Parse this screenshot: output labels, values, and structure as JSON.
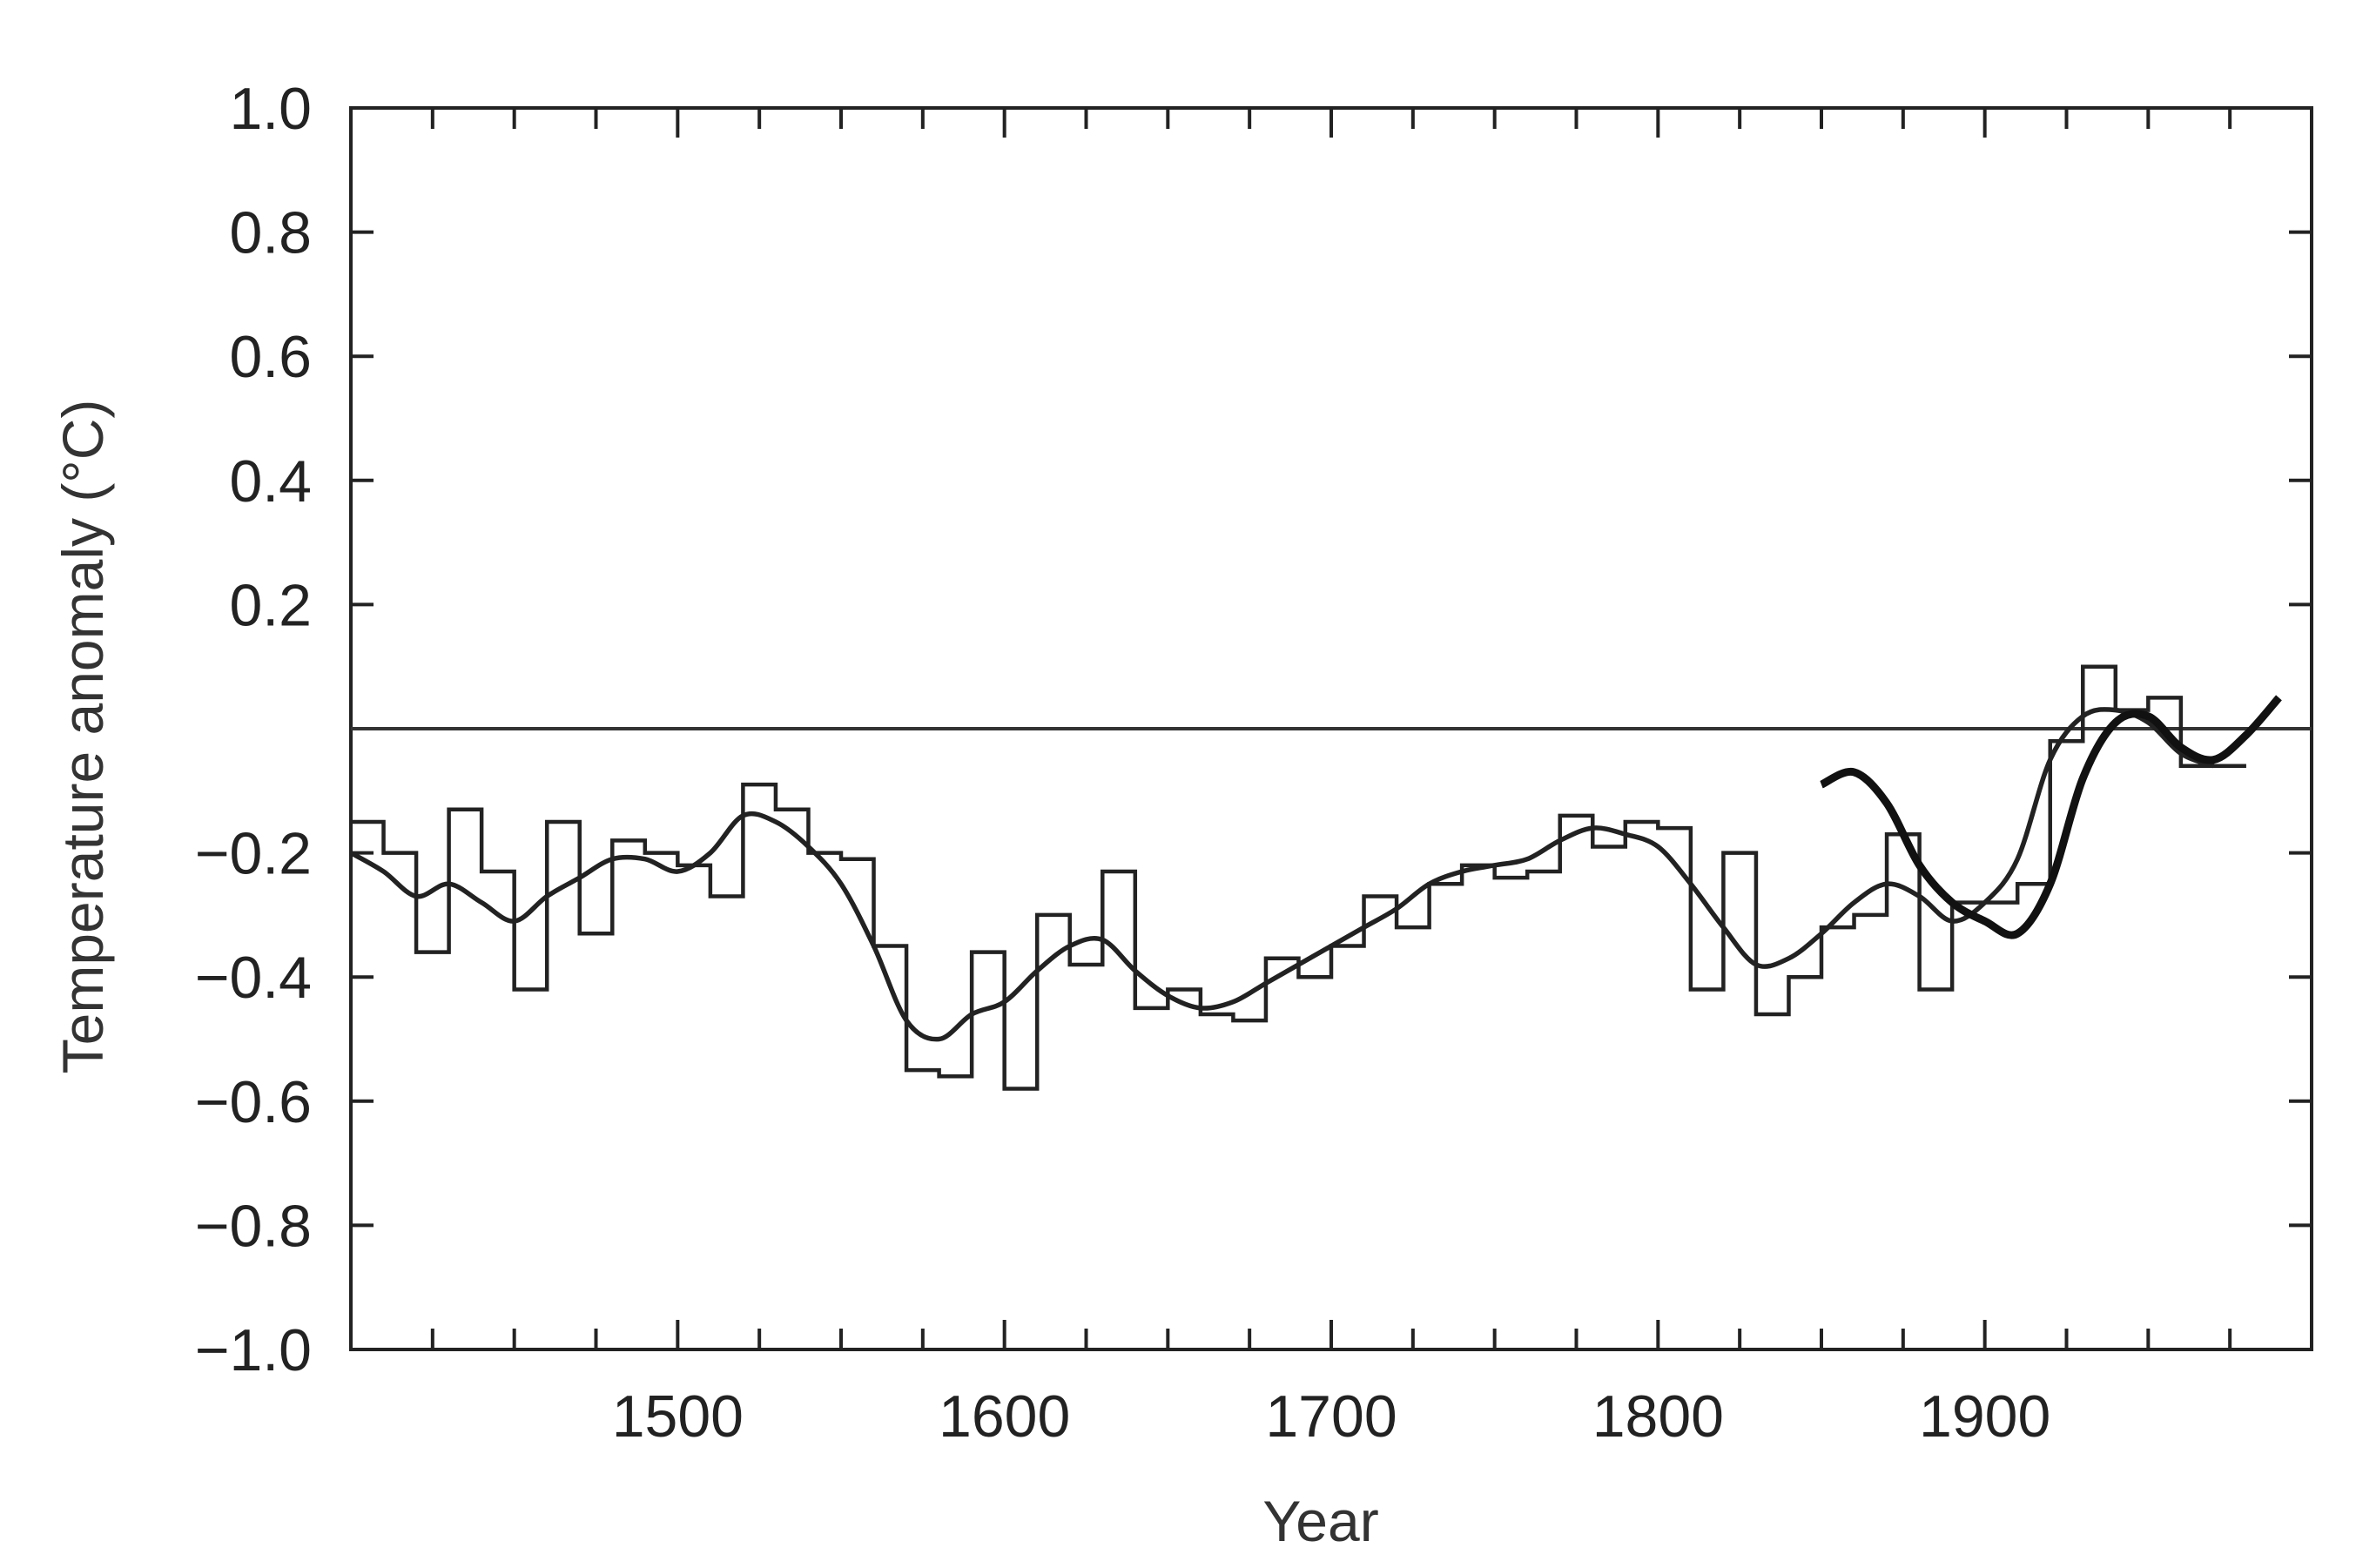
{
  "chart_data": {
    "type": "line",
    "title": "",
    "xlabel": "Year",
    "ylabel": "Temperature anomaly (°C)",
    "xlim": [
      1400,
      2000
    ],
    "ylim": [
      -1.0,
      1.0
    ],
    "x_ticks": [
      1500,
      1600,
      1700,
      1800,
      1900
    ],
    "x_tick_labels": [
      "1500",
      "1600",
      "1700",
      "1800",
      "1900"
    ],
    "y_ticks": [
      1.0,
      0.8,
      0.6,
      0.4,
      0.2,
      -0.2,
      -0.4,
      -0.6,
      -0.8,
      -1.0
    ],
    "y_tick_labels": [
      "1.0",
      "0.8",
      "0.6",
      "0.4",
      "0.2",
      "−0.2",
      "−0.4",
      "−0.6",
      "−0.8",
      "−1.0"
    ],
    "x_minor_tick_step": 25,
    "reference_line_y": 0,
    "grid": false,
    "legend": "none",
    "series": [
      {
        "style": "step",
        "bin_width": 10,
        "x": [
          1400,
          1410,
          1420,
          1430,
          1440,
          1450,
          1460,
          1470,
          1480,
          1490,
          1500,
          1510,
          1520,
          1530,
          1540,
          1550,
          1560,
          1570,
          1580,
          1590,
          1600,
          1610,
          1620,
          1630,
          1640,
          1650,
          1660,
          1670,
          1680,
          1690,
          1700,
          1710,
          1720,
          1730,
          1740,
          1750,
          1760,
          1770,
          1780,
          1790,
          1800,
          1810,
          1820,
          1830,
          1840,
          1850,
          1860,
          1870,
          1880,
          1890,
          1900,
          1910,
          1920,
          1930,
          1940,
          1950,
          1960,
          1970
        ],
        "y": [
          -0.15,
          -0.2,
          -0.36,
          -0.13,
          -0.23,
          -0.42,
          -0.15,
          -0.33,
          -0.18,
          -0.2,
          -0.22,
          -0.27,
          -0.09,
          -0.13,
          -0.2,
          -0.21,
          -0.35,
          -0.55,
          -0.56,
          -0.36,
          -0.58,
          -0.3,
          -0.38,
          -0.23,
          -0.45,
          -0.42,
          -0.46,
          -0.47,
          -0.37,
          -0.4,
          -0.35,
          -0.27,
          -0.32,
          -0.25,
          -0.22,
          -0.24,
          -0.23,
          -0.14,
          -0.19,
          -0.15,
          -0.16,
          -0.42,
          -0.2,
          -0.46,
          -0.4,
          -0.32,
          -0.3,
          -0.17,
          -0.42,
          -0.28,
          -0.28,
          -0.25,
          -0.02,
          0.1,
          0.03,
          0.05,
          -0.06,
          -0.06
        ]
      },
      {
        "style": "smooth",
        "x": [
          1400,
          1410,
          1420,
          1430,
          1440,
          1450,
          1460,
          1470,
          1480,
          1490,
          1500,
          1510,
          1520,
          1530,
          1540,
          1550,
          1560,
          1570,
          1580,
          1590,
          1600,
          1610,
          1620,
          1630,
          1640,
          1650,
          1660,
          1670,
          1680,
          1690,
          1700,
          1710,
          1720,
          1730,
          1740,
          1750,
          1760,
          1770,
          1780,
          1790,
          1800,
          1810,
          1820,
          1830,
          1840,
          1850,
          1860,
          1870,
          1880,
          1890,
          1900,
          1910,
          1920,
          1930,
          1940,
          1950,
          1960,
          1970
        ],
        "y": [
          -0.2,
          -0.23,
          -0.27,
          -0.25,
          -0.28,
          -0.31,
          -0.27,
          -0.24,
          -0.21,
          -0.21,
          -0.23,
          -0.2,
          -0.14,
          -0.15,
          -0.19,
          -0.25,
          -0.35,
          -0.47,
          -0.5,
          -0.46,
          -0.44,
          -0.39,
          -0.35,
          -0.34,
          -0.39,
          -0.43,
          -0.45,
          -0.44,
          -0.41,
          -0.38,
          -0.35,
          -0.32,
          -0.29,
          -0.25,
          -0.23,
          -0.22,
          -0.21,
          -0.18,
          -0.16,
          -0.17,
          -0.19,
          -0.25,
          -0.32,
          -0.38,
          -0.37,
          -0.33,
          -0.28,
          -0.25,
          -0.27,
          -0.31,
          -0.28,
          -0.21,
          -0.05,
          0.02,
          0.03,
          0.01,
          -0.04,
          -0.06
        ]
      },
      {
        "style": "instrumental",
        "x": [
          1850,
          1860,
          1870,
          1880,
          1890,
          1900,
          1910,
          1920,
          1930,
          1940,
          1950,
          1960,
          1970,
          1980,
          1990
        ],
        "y": [
          -0.09,
          -0.07,
          -0.12,
          -0.22,
          -0.28,
          -0.31,
          -0.33,
          -0.25,
          -0.08,
          0.01,
          0.02,
          -0.03,
          -0.05,
          -0.01,
          0.05
        ]
      }
    ]
  }
}
